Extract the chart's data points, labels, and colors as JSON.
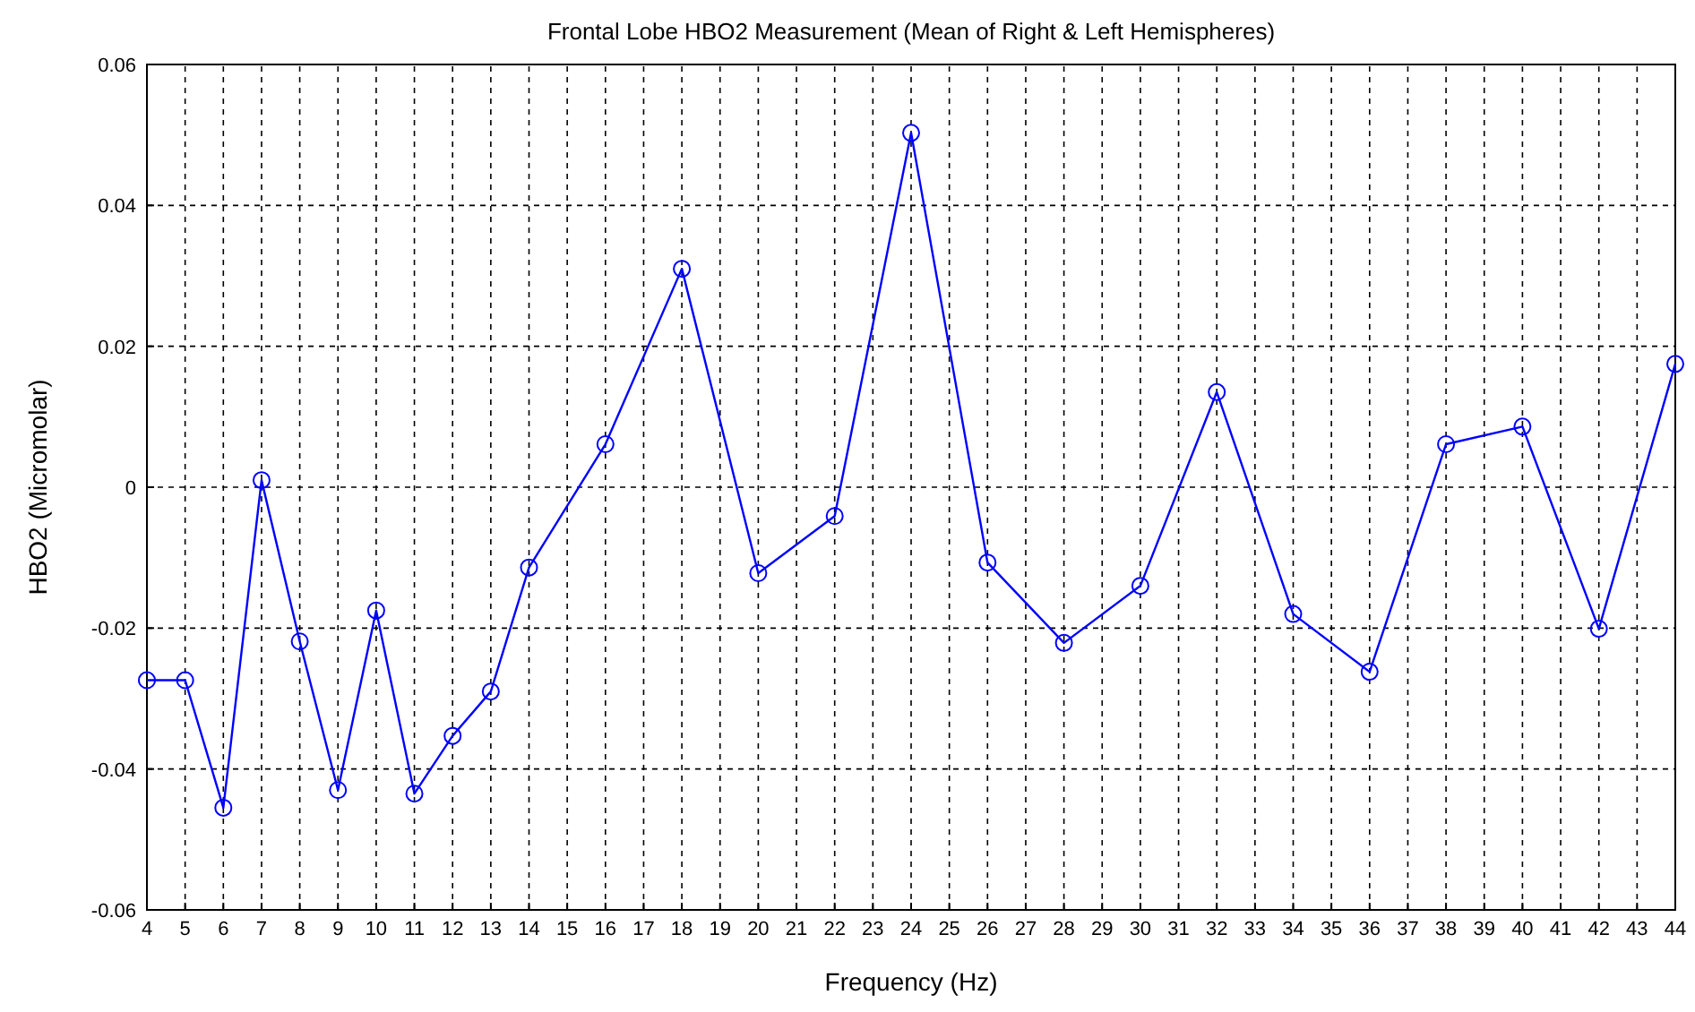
{
  "chart_data": {
    "type": "line",
    "title": "Frontal Lobe HBO2 Measurement (Mean of Right & Left Hemispheres)",
    "xlabel": "Frequency (Hz)",
    "ylabel": "HBO2 (Micromolar)",
    "x": [
      4,
      5,
      6,
      7,
      8,
      9,
      10,
      11,
      12,
      13,
      14,
      16,
      18,
      20,
      22,
      24,
      26,
      28,
      30,
      32,
      34,
      36,
      38,
      40,
      42,
      44
    ],
    "series": [
      {
        "color": "#0000ff",
        "values": [
          -0.0274,
          -0.0274,
          -0.0455,
          0.001,
          -0.0219,
          -0.043,
          -0.0175,
          -0.0435,
          -0.0353,
          -0.029,
          -0.0114,
          0.0061,
          0.031,
          -0.0122,
          -0.0041,
          0.0503,
          -0.0107,
          -0.0221,
          -0.014,
          0.0135,
          -0.018,
          -0.0262,
          0.0061,
          0.0086,
          -0.0201,
          0.0175
        ]
      }
    ],
    "xlim": [
      4,
      44
    ],
    "xticks": [
      4,
      5,
      6,
      7,
      8,
      9,
      10,
      11,
      12,
      13,
      14,
      15,
      16,
      17,
      18,
      19,
      20,
      21,
      22,
      23,
      24,
      25,
      26,
      27,
      28,
      29,
      30,
      31,
      32,
      33,
      34,
      35,
      36,
      37,
      38,
      39,
      40,
      41,
      42,
      43,
      44
    ],
    "ylim": [
      -0.06,
      0.06
    ],
    "yticks": [
      -0.06,
      -0.04,
      -0.02,
      0,
      0.02,
      0.04,
      0.06
    ],
    "grid": true,
    "marker": "circle",
    "line_style": "solid"
  }
}
